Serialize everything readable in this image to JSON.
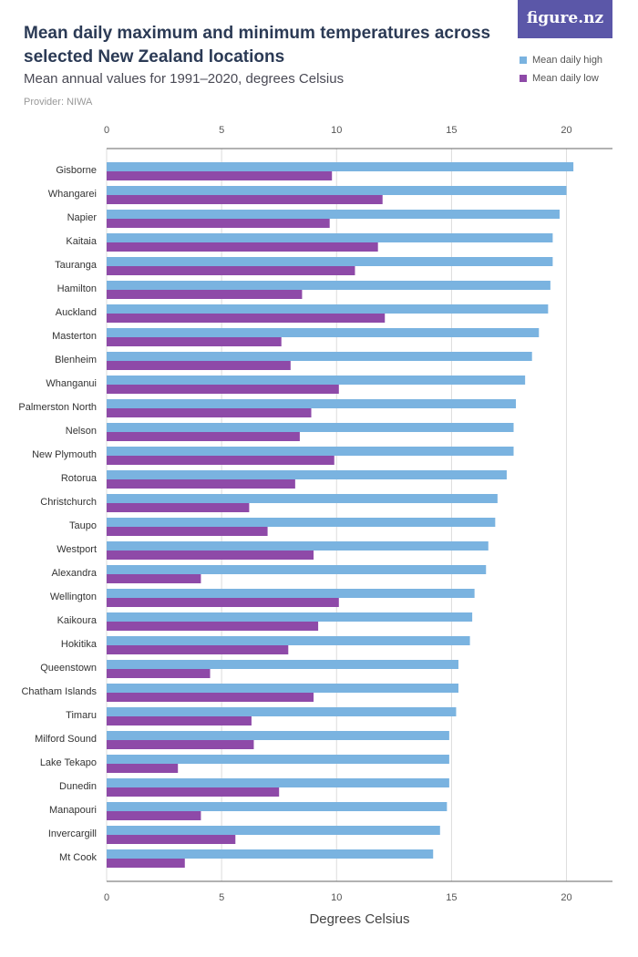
{
  "header": {
    "title": "Mean daily maximum and minimum temperatures across selected New Zealand locations",
    "subtitle": "Mean annual values for 1991–2020, degrees Celsius",
    "provider": "Provider: NIWA",
    "logo": "figure.nz"
  },
  "colors": {
    "high": "#7ab3e0",
    "low": "#8e4aa8",
    "grid": "#dcdcdc",
    "axis": "#666666"
  },
  "chart_data": {
    "type": "bar",
    "orientation": "horizontal",
    "title": "Mean daily maximum and minimum temperatures across selected New Zealand locations",
    "xlabel": "Degrees Celsius",
    "xlim": [
      0,
      22
    ],
    "ticks": [
      0,
      5,
      10,
      15,
      20
    ],
    "categories": [
      "Gisborne",
      "Whangarei",
      "Napier",
      "Kaitaia",
      "Tauranga",
      "Hamilton",
      "Auckland",
      "Masterton",
      "Blenheim",
      "Whanganui",
      "Palmerston North",
      "Nelson",
      "New Plymouth",
      "Rotorua",
      "Christchurch",
      "Taupo",
      "Westport",
      "Alexandra",
      "Wellington",
      "Kaikoura",
      "Hokitika",
      "Queenstown",
      "Chatham Islands",
      "Timaru",
      "Milford Sound",
      "Lake Tekapo",
      "Dunedin",
      "Manapouri",
      "Invercargill",
      "Mt Cook"
    ],
    "series": [
      {
        "name": "Mean daily high",
        "values": [
          20.3,
          20.0,
          19.7,
          19.4,
          19.4,
          19.3,
          19.2,
          18.8,
          18.5,
          18.2,
          17.8,
          17.7,
          17.7,
          17.4,
          17.0,
          16.9,
          16.6,
          16.5,
          16.0,
          15.9,
          15.8,
          15.3,
          15.3,
          15.2,
          14.9,
          14.9,
          14.9,
          14.8,
          14.5,
          14.2
        ]
      },
      {
        "name": "Mean daily low",
        "values": [
          9.8,
          12.0,
          9.7,
          11.8,
          10.8,
          8.5,
          12.1,
          7.6,
          8.0,
          10.1,
          8.9,
          8.4,
          9.9,
          8.2,
          6.2,
          7.0,
          9.0,
          4.1,
          10.1,
          9.2,
          7.9,
          4.5,
          9.0,
          6.3,
          6.4,
          3.1,
          7.5,
          4.1,
          5.6,
          3.4
        ]
      }
    ]
  }
}
